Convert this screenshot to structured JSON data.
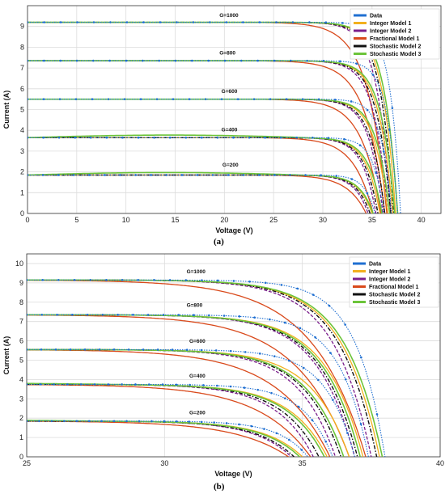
{
  "chart_data": [
    {
      "type": "line",
      "panel_label": "(a)",
      "xlabel": "Voltage (V)",
      "ylabel": "Current (A)",
      "xlim": [
        0,
        42
      ],
      "ylim": [
        0,
        10
      ],
      "xticks": [
        0,
        5,
        10,
        15,
        20,
        25,
        30,
        35,
        40
      ],
      "yticks": [
        0,
        1,
        2,
        3,
        4,
        5,
        6,
        7,
        8,
        9
      ],
      "grid": true,
      "legend_position": "top-right",
      "legend": [
        {
          "name": "Data",
          "color": "#1f6fd1"
        },
        {
          "name": "Integer Model 1",
          "color": "#f2b01e"
        },
        {
          "name": "Integer Model 2",
          "color": "#7b1f8c"
        },
        {
          "name": "Fractional  Model 1",
          "color": "#d94a1c"
        },
        {
          "name": "Stochastic Model 2",
          "color": "#111111"
        },
        {
          "name": "Stochastic Model 3",
          "color": "#6cc43a"
        }
      ],
      "annotations": [
        {
          "text": "G=1000",
          "x": 19.5,
          "y": 9.45
        },
        {
          "text": "G=800",
          "x": 19.5,
          "y": 7.65
        },
        {
          "text": "G=600",
          "x": 19.7,
          "y": 5.8
        },
        {
          "text": "G=400",
          "x": 19.7,
          "y": 3.95
        },
        {
          "text": "G=200",
          "x": 19.8,
          "y": 2.25
        }
      ],
      "curves": [
        {
          "irradiance": 1000,
          "isc": 9.2,
          "voc": {
            "Data": 37.9,
            "Integer Model 1": 37.4,
            "Integer Model 2": 36.9,
            "Fractional  Model 1": 36.5,
            "Stochastic Model 2": 37.2,
            "Stochastic Model 3": 37.6
          }
        },
        {
          "irradiance": 800,
          "isc": 7.35,
          "voc": {
            "Data": 37.6,
            "Integer Model 1": 37.1,
            "Integer Model 2": 36.6,
            "Fractional  Model 1": 36.3,
            "Stochastic Model 2": 36.9,
            "Stochastic Model 3": 37.3
          }
        },
        {
          "irradiance": 600,
          "isc": 5.5,
          "voc": {
            "Data": 37.0,
            "Integer Model 1": 36.6,
            "Integer Model 2": 36.1,
            "Fractional  Model 1": 35.9,
            "Stochastic Model 2": 36.3,
            "Stochastic Model 3": 36.8
          }
        },
        {
          "irradiance": 400,
          "isc": 3.65,
          "voc": {
            "Data": 36.2,
            "Integer Model 1": 35.8,
            "Integer Model 2": 35.4,
            "Fractional  Model 1": 35.1,
            "Stochastic Model 2": 35.6,
            "Stochastic Model 3": 36.0
          }
        },
        {
          "irradiance": 200,
          "isc": 1.85,
          "voc": {
            "Data": 35.3,
            "Integer Model 1": 35.0,
            "Integer Model 2": 34.6,
            "Fractional  Model 1": 34.4,
            "Stochastic Model 2": 34.8,
            "Stochastic Model 3": 35.1
          }
        }
      ]
    },
    {
      "type": "line",
      "panel_label": "(b)",
      "xlabel": "Voltage (V)",
      "ylabel": "Current (A)",
      "xlim": [
        25,
        40
      ],
      "ylim": [
        0,
        10.5
      ],
      "xticks": [
        25,
        30,
        35,
        40
      ],
      "yticks": [
        0,
        1,
        2,
        3,
        4,
        5,
        6,
        7,
        8,
        9,
        10
      ],
      "grid": true,
      "legend_position": "top-right",
      "legend": [
        {
          "name": "Data",
          "color": "#1f6fd1"
        },
        {
          "name": "Integer Model 1",
          "color": "#f2b01e"
        },
        {
          "name": "Integer Model 2",
          "color": "#7b1f8c"
        },
        {
          "name": "Fractional  Model 1",
          "color": "#d94a1c"
        },
        {
          "name": "Stochastic Model 2",
          "color": "#111111"
        },
        {
          "name": "Stochastic Model 3",
          "color": "#6cc43a"
        }
      ],
      "annotations": [
        {
          "text": "G=1000",
          "x": 30.8,
          "y": 9.5
        },
        {
          "text": "G=800",
          "x": 30.8,
          "y": 7.75
        },
        {
          "text": "G=600",
          "x": 30.9,
          "y": 5.9
        },
        {
          "text": "G=400",
          "x": 30.9,
          "y": 4.1
        },
        {
          "text": "G=200",
          "x": 30.9,
          "y": 2.2
        }
      ],
      "curves": [
        {
          "irradiance": 1000,
          "isc": 9.15,
          "voc": {
            "Data": 38.0,
            "Integer Model 1": 37.8,
            "Integer Model 2": 37.5,
            "Fractional  Model 1": 37.3,
            "Stochastic Model 2": 37.7,
            "Stochastic Model 3": 37.9
          }
        },
        {
          "irradiance": 800,
          "isc": 7.35,
          "voc": {
            "Data": 37.4,
            "Integer Model 1": 37.2,
            "Integer Model 2": 36.9,
            "Fractional  Model 1": 36.7,
            "Stochastic Model 2": 37.0,
            "Stochastic Model 3": 37.1
          }
        },
        {
          "irradiance": 600,
          "isc": 5.55,
          "voc": {
            "Data": 36.9,
            "Integer Model 1": 36.7,
            "Integer Model 2": 36.2,
            "Fractional  Model 1": 36.0,
            "Stochastic Model 2": 36.4,
            "Stochastic Model 3": 36.5
          }
        },
        {
          "irradiance": 400,
          "isc": 3.75,
          "voc": {
            "Data": 36.1,
            "Integer Model 1": 35.9,
            "Integer Model 2": 35.4,
            "Fractional  Model 1": 35.3,
            "Stochastic Model 2": 35.6,
            "Stochastic Model 3": 35.8
          }
        },
        {
          "irradiance": 200,
          "isc": 1.85,
          "voc": {
            "Data": 35.2,
            "Integer Model 1": 35.0,
            "Integer Model 2": 34.6,
            "Fractional  Model 1": 34.5,
            "Stochastic Model 2": 34.7,
            "Stochastic Model 3": 34.9
          }
        }
      ]
    }
  ]
}
